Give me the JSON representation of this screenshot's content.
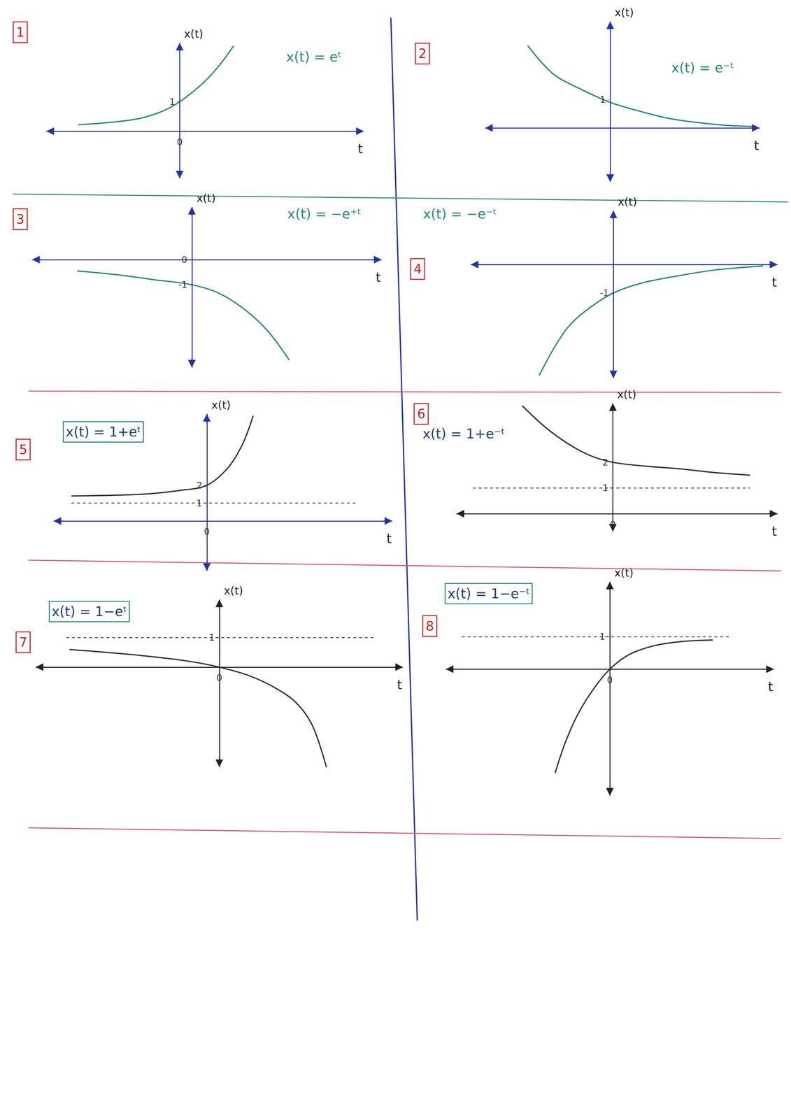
{
  "chart_data": [
    {
      "type": "line",
      "label": "1",
      "title": "x(t) = eᵗ",
      "xlabel": "t",
      "ylabel": "x(t)",
      "xlim": [
        -4.2,
        5.8
      ],
      "ylim": [
        -1.6,
        3
      ],
      "xticks": [
        0
      ],
      "yticks": [
        1
      ],
      "grid": false,
      "series": [
        {
          "color": "#2a8a78",
          "line_style": "solid",
          "x": [
            -3.2,
            -2,
            -1.2,
            -0.5,
            0,
            0.8,
            1.3,
            1.7
          ],
          "values": [
            0.22,
            0.32,
            0.45,
            0.7,
            1,
            1.7,
            2.3,
            2.9
          ]
        }
      ]
    },
    {
      "type": "line",
      "label": "2",
      "title": "x(t) = e⁻ᵗ",
      "xlabel": "t",
      "ylabel": "x(t)",
      "xlim": [
        -4.4,
        5.25
      ],
      "ylim": [
        -1.9,
        3.75
      ],
      "yticks": [
        1
      ],
      "tick_labels": "y",
      "grid": false,
      "series": [
        {
          "color": "#2a8a78",
          "line_style": "solid",
          "x": [
            -2.9,
            -2,
            -1,
            0,
            1,
            2,
            3,
            4,
            5.1
          ],
          "values": [
            2.9,
            1.9,
            1.35,
            0.9,
            0.6,
            0.35,
            0.2,
            0.1,
            0.05
          ]
        }
      ]
    },
    {
      "type": "line",
      "label": "3",
      "title": "x(t) = −e⁺ᵗ",
      "xlabel": "t",
      "ylabel": "x(t)",
      "xlim": [
        -6.4,
        7.6
      ],
      "ylim": [
        -4.3,
        2.1
      ],
      "yticks": [
        -1,
        0
      ],
      "tick_labels": "y",
      "grid": false,
      "series": [
        {
          "color": "#2a8a78",
          "line_style": "solid",
          "x": [
            -4.6,
            -3,
            -1.5,
            0,
            1,
            2,
            3,
            3.9
          ],
          "values": [
            -0.45,
            -0.6,
            -0.8,
            -1,
            -1.3,
            -1.9,
            -2.8,
            -4
          ]
        }
      ]
    },
    {
      "type": "line",
      "label": "4",
      "title": "x(t) = −e⁻ᵗ",
      "xlabel": "t",
      "ylabel": "x(t)",
      "xlim": [
        -5,
        5.75
      ],
      "ylim": [
        -4,
        1.9
      ],
      "yticks": [
        -1
      ],
      "tick_labels": "y",
      "grid": false,
      "series": [
        {
          "color": "#2a8a78",
          "line_style": "solid",
          "x": [
            -2.6,
            -2,
            -1.5,
            -0.8,
            0,
            1,
            2.25,
            3.5,
            5.25
          ],
          "values": [
            -3.9,
            -2.8,
            -2.1,
            -1.5,
            -1,
            -0.65,
            -0.4,
            -0.2,
            -0.05
          ]
        }
      ]
    },
    {
      "type": "line",
      "label": "5",
      "title": "x(t) = 1+eᵗ",
      "xlabel": "t",
      "ylabel": "x(t)",
      "xlim": [
        -8.6,
        10.4
      ],
      "ylim": [
        -2.8,
        6
      ],
      "xticks": [
        0
      ],
      "yticks": [
        1,
        2
      ],
      "grid": false,
      "series": [
        {
          "color": "#333333",
          "line_style": "solid",
          "x": [
            -7.6,
            -3.6,
            -1.6,
            0,
            1.2,
            2,
            2.6
          ],
          "values": [
            1.4,
            1.5,
            1.7,
            2,
            3,
            4.3,
            5.9
          ]
        },
        {
          "color": "#555555",
          "line_style": "dash",
          "x": [
            -7.6,
            8.4
          ],
          "values": [
            1,
            1
          ]
        }
      ]
    },
    {
      "type": "line",
      "label": "6",
      "title": "x(t) = 1+e⁻ᵗ",
      "xlabel": "t",
      "ylabel": "x(t)",
      "xlim": [
        -5.7,
        6
      ],
      "ylim": [
        -0.7,
        4.3
      ],
      "xticks": [
        0
      ],
      "yticks": [
        1,
        2
      ],
      "grid": false,
      "series": [
        {
          "color": "#333333",
          "line_style": "solid",
          "x": [
            -3.3,
            -2.5,
            -1.6,
            -0.8,
            0,
            1.2,
            2.4,
            3.7,
            5
          ],
          "values": [
            4.2,
            3.4,
            2.7,
            2.25,
            2,
            1.85,
            1.75,
            1.6,
            1.5
          ]
        },
        {
          "color": "#555555",
          "line_style": "dash",
          "x": [
            -5.1,
            5
          ],
          "values": [
            1,
            1
          ]
        }
      ]
    },
    {
      "type": "line",
      "label": "7",
      "title": "x(t) = 1−eᵗ",
      "xlabel": "t",
      "ylabel": "x(t)",
      "xlim": [
        -6,
        6
      ],
      "ylim": [
        -3.4,
        2.3
      ],
      "xticks": [
        0
      ],
      "yticks": [
        1
      ],
      "grid": false,
      "series": [
        {
          "color": "#333333",
          "line_style": "solid",
          "x": [
            -4.9,
            -2.6,
            -1,
            0,
            1,
            1.9,
            2.5,
            3,
            3.5
          ],
          "values": [
            0.6,
            0.4,
            0.2,
            0,
            -0.3,
            -0.75,
            -1.2,
            -1.9,
            -3.4
          ]
        },
        {
          "color": "#555555",
          "line_style": "dash",
          "x": [
            -5,
            5.1
          ],
          "values": [
            1,
            1
          ]
        }
      ]
    },
    {
      "type": "line",
      "label": "8",
      "title": "x(t) = 1−e⁻ᵗ",
      "xlabel": "t",
      "ylabel": "x(t)",
      "xlim": [
        -5.1,
        5.1
      ],
      "ylim": [
        -3.9,
        2.7
      ],
      "xticks": [
        0
      ],
      "yticks": [
        1
      ],
      "grid": false,
      "series": [
        {
          "color": "#333333",
          "line_style": "solid",
          "x": [
            -1.7,
            -1.4,
            -1,
            -0.5,
            0,
            0.6,
            1.4,
            2.2,
            3.2
          ],
          "values": [
            -3.2,
            -2.3,
            -1.4,
            -0.6,
            0,
            0.45,
            0.73,
            0.85,
            0.9
          ]
        },
        {
          "color": "#555555",
          "line_style": "dash",
          "x": [
            -4.6,
            3.7
          ],
          "values": [
            1,
            1
          ]
        }
      ]
    }
  ]
}
